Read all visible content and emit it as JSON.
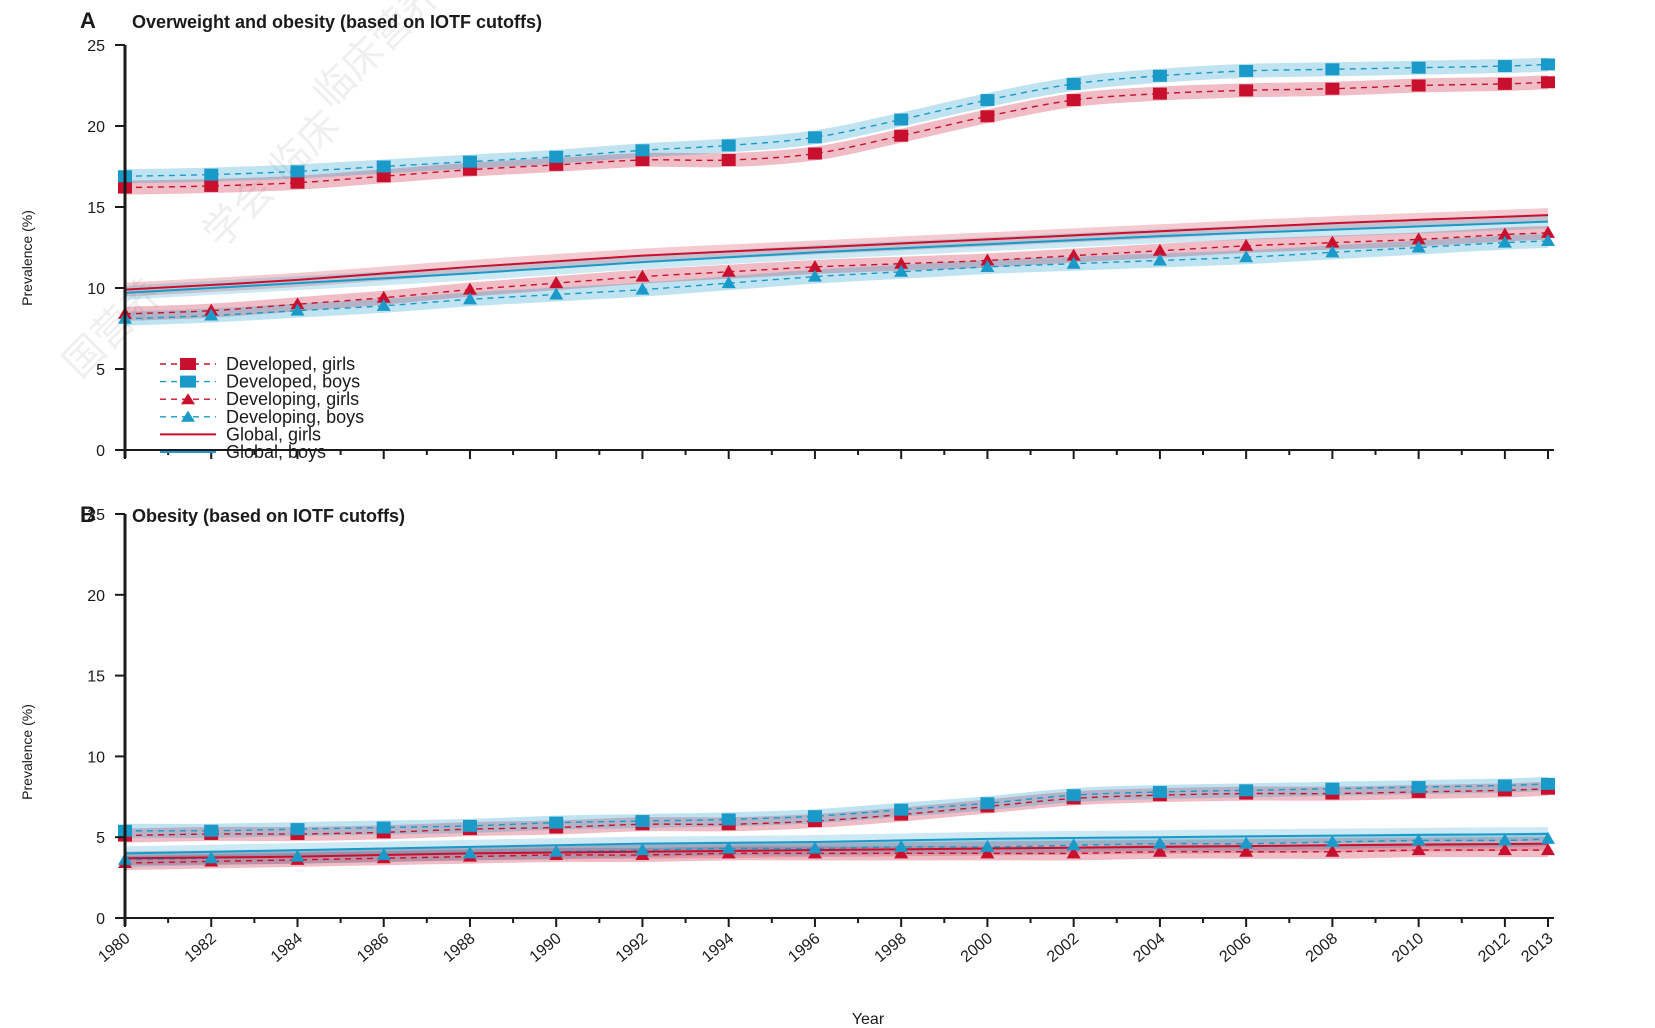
{
  "chart_data": [
    {
      "type": "line",
      "panel_letter": "A",
      "title": "Overweight and obesity (based on IOTF cutoffs)",
      "xlabel": "",
      "ylabel": "Prevalence (%)",
      "xlim": [
        1980,
        2013
      ],
      "ylim": [
        0,
        25
      ],
      "yticks": [
        0,
        5,
        10,
        15,
        20,
        25
      ],
      "grid": false,
      "legend_position": "bottom-left",
      "series": [
        {
          "name": "Developed, girls",
          "color": "#c8102e",
          "style": "dashed",
          "marker": "square",
          "x": [
            1980,
            1982,
            1984,
            1986,
            1988,
            1990,
            1992,
            1994,
            1996,
            1998,
            2000,
            2002,
            2004,
            2006,
            2008,
            2010,
            2012,
            2013
          ],
          "y": [
            16.2,
            16.3,
            16.5,
            16.9,
            17.3,
            17.6,
            17.9,
            17.9,
            18.3,
            19.4,
            20.6,
            21.6,
            22.0,
            22.2,
            22.3,
            22.5,
            22.6,
            22.7
          ]
        },
        {
          "name": "Developed, boys",
          "color": "#1a9ac9",
          "style": "dashed",
          "marker": "square",
          "x": [
            1980,
            1982,
            1984,
            1986,
            1988,
            1990,
            1992,
            1994,
            1996,
            1998,
            2000,
            2002,
            2004,
            2006,
            2008,
            2010,
            2012,
            2013
          ],
          "y": [
            16.9,
            17.0,
            17.2,
            17.5,
            17.8,
            18.1,
            18.5,
            18.8,
            19.3,
            20.4,
            21.6,
            22.6,
            23.1,
            23.4,
            23.5,
            23.6,
            23.7,
            23.8
          ]
        },
        {
          "name": "Developing, girls",
          "color": "#c8102e",
          "style": "dashed",
          "marker": "triangle",
          "x": [
            1980,
            1982,
            1984,
            1986,
            1988,
            1990,
            1992,
            1994,
            1996,
            1998,
            2000,
            2002,
            2004,
            2006,
            2008,
            2010,
            2012,
            2013
          ],
          "y": [
            8.4,
            8.6,
            9.0,
            9.4,
            9.9,
            10.3,
            10.7,
            11.0,
            11.3,
            11.5,
            11.7,
            12.0,
            12.3,
            12.6,
            12.8,
            13.0,
            13.3,
            13.4
          ]
        },
        {
          "name": "Developing, boys",
          "color": "#1a9ac9",
          "style": "dashed",
          "marker": "triangle",
          "x": [
            1980,
            1982,
            1984,
            1986,
            1988,
            1990,
            1992,
            1994,
            1996,
            1998,
            2000,
            2002,
            2004,
            2006,
            2008,
            2010,
            2012,
            2013
          ],
          "y": [
            8.1,
            8.3,
            8.6,
            8.9,
            9.3,
            9.6,
            9.9,
            10.3,
            10.7,
            11.0,
            11.3,
            11.5,
            11.7,
            11.9,
            12.2,
            12.5,
            12.8,
            12.9
          ]
        },
        {
          "name": "Global, girls",
          "color": "#c8102e",
          "style": "solid",
          "marker": "none",
          "x": [
            1980,
            1984,
            1988,
            1992,
            1996,
            2000,
            2004,
            2008,
            2013
          ],
          "y": [
            9.9,
            10.5,
            11.3,
            12.0,
            12.5,
            13.0,
            13.5,
            14.0,
            14.5
          ]
        },
        {
          "name": "Global, boys",
          "color": "#1a9ac9",
          "style": "solid",
          "marker": "none",
          "x": [
            1980,
            1984,
            1988,
            1992,
            1996,
            2000,
            2004,
            2008,
            2013
          ],
          "y": [
            9.7,
            10.3,
            10.9,
            11.6,
            12.2,
            12.7,
            13.2,
            13.6,
            14.1
          ]
        }
      ]
    },
    {
      "type": "line",
      "panel_letter": "B",
      "title": "Obesity (based on IOTF cutoffs)",
      "xlabel": "Year",
      "ylabel": "Prevalence (%)",
      "xlim": [
        1980,
        2013
      ],
      "ylim": [
        0,
        25
      ],
      "yticks": [
        0,
        5,
        10,
        15,
        20,
        25
      ],
      "xticks": [
        1980,
        1982,
        1984,
        1986,
        1988,
        1990,
        1992,
        1994,
        1996,
        1998,
        2000,
        2002,
        2004,
        2006,
        2008,
        2010,
        2012,
        2013
      ],
      "grid": false,
      "series": [
        {
          "name": "Developed, girls",
          "color": "#c8102e",
          "style": "dashed",
          "marker": "square",
          "x": [
            1980,
            1982,
            1984,
            1986,
            1988,
            1990,
            1992,
            1994,
            1996,
            1998,
            2000,
            2002,
            2004,
            2006,
            2008,
            2010,
            2012,
            2013
          ],
          "y": [
            5.1,
            5.2,
            5.2,
            5.3,
            5.5,
            5.6,
            5.8,
            5.8,
            6.0,
            6.4,
            6.9,
            7.4,
            7.6,
            7.7,
            7.7,
            7.8,
            7.9,
            8.0
          ]
        },
        {
          "name": "Developed, boys",
          "color": "#1a9ac9",
          "style": "dashed",
          "marker": "square",
          "x": [
            1980,
            1982,
            1984,
            1986,
            1988,
            1990,
            1992,
            1994,
            1996,
            1998,
            2000,
            2002,
            2004,
            2006,
            2008,
            2010,
            2012,
            2013
          ],
          "y": [
            5.4,
            5.4,
            5.5,
            5.6,
            5.7,
            5.9,
            6.0,
            6.1,
            6.3,
            6.7,
            7.1,
            7.6,
            7.8,
            7.9,
            8.0,
            8.1,
            8.2,
            8.3
          ]
        },
        {
          "name": "Developing, girls",
          "color": "#c8102e",
          "style": "dashed",
          "marker": "triangle",
          "x": [
            1980,
            1982,
            1984,
            1986,
            1988,
            1990,
            1992,
            1994,
            1996,
            1998,
            2000,
            2002,
            2004,
            2006,
            2008,
            2010,
            2012,
            2013
          ],
          "y": [
            3.4,
            3.5,
            3.6,
            3.7,
            3.8,
            3.9,
            3.9,
            4.0,
            4.0,
            4.0,
            4.0,
            4.0,
            4.1,
            4.1,
            4.1,
            4.2,
            4.2,
            4.2
          ]
        },
        {
          "name": "Developing, boys",
          "color": "#1a9ac9",
          "style": "dashed",
          "marker": "triangle",
          "x": [
            1980,
            1982,
            1984,
            1986,
            1988,
            1990,
            1992,
            1994,
            1996,
            1998,
            2000,
            2002,
            2004,
            2006,
            2008,
            2010,
            2012,
            2013
          ],
          "y": [
            3.6,
            3.7,
            3.8,
            3.9,
            4.0,
            4.1,
            4.2,
            4.3,
            4.3,
            4.4,
            4.4,
            4.5,
            4.6,
            4.6,
            4.7,
            4.8,
            4.8,
            4.9
          ]
        },
        {
          "name": "Global, girls",
          "color": "#c8102e",
          "style": "solid",
          "marker": "none",
          "x": [
            1980,
            1984,
            1988,
            1992,
            1996,
            2000,
            2004,
            2008,
            2013
          ],
          "y": [
            3.7,
            3.8,
            4.0,
            4.1,
            4.2,
            4.3,
            4.4,
            4.5,
            4.6
          ]
        },
        {
          "name": "Global, boys",
          "color": "#1a9ac9",
          "style": "solid",
          "marker": "none",
          "x": [
            1980,
            1984,
            1988,
            1992,
            1996,
            2000,
            2004,
            2008,
            2013
          ],
          "y": [
            4.0,
            4.2,
            4.4,
            4.6,
            4.7,
            4.9,
            5.0,
            5.1,
            5.2
          ]
        }
      ]
    }
  ]
}
